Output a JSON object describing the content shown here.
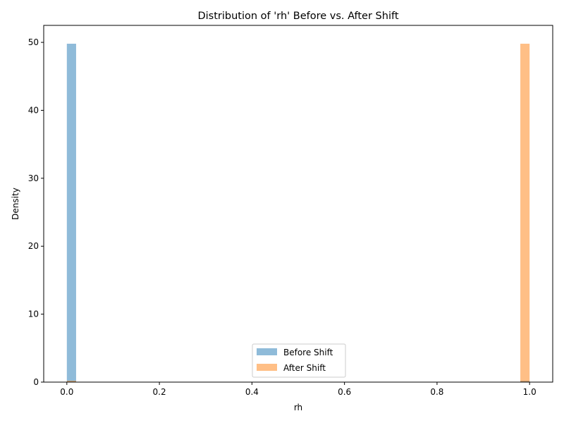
{
  "chart_data": {
    "type": "bar",
    "title": "Distribution of 'rh' Before vs. After Shift",
    "xlabel": "rh",
    "ylabel": "Density",
    "xlim": [
      -0.05,
      1.05
    ],
    "ylim": [
      0,
      52.5
    ],
    "xticks": [
      0.0,
      0.2,
      0.4,
      0.6,
      0.8,
      1.0
    ],
    "xtick_labels": [
      "0.0",
      "0.2",
      "0.4",
      "0.6",
      "0.8",
      "1.0"
    ],
    "yticks": [
      0,
      10,
      20,
      30,
      40,
      50
    ],
    "ytick_labels": [
      "0",
      "10",
      "20",
      "30",
      "40",
      "50"
    ],
    "grid": false,
    "legend_position": "bottom-center",
    "bar_width": 0.02,
    "series": [
      {
        "name": "Before Shift",
        "color": "#1f77b4",
        "opacity": 0.5,
        "bars": [
          {
            "x0": 0.0,
            "height": 49.8
          },
          {
            "x0": 0.98,
            "height": 0.2
          }
        ]
      },
      {
        "name": "After Shift",
        "color": "#ff7f0e",
        "opacity": 0.5,
        "bars": [
          {
            "x0": 0.0,
            "height": 0.2
          },
          {
            "x0": 0.98,
            "height": 49.8
          }
        ]
      }
    ]
  }
}
